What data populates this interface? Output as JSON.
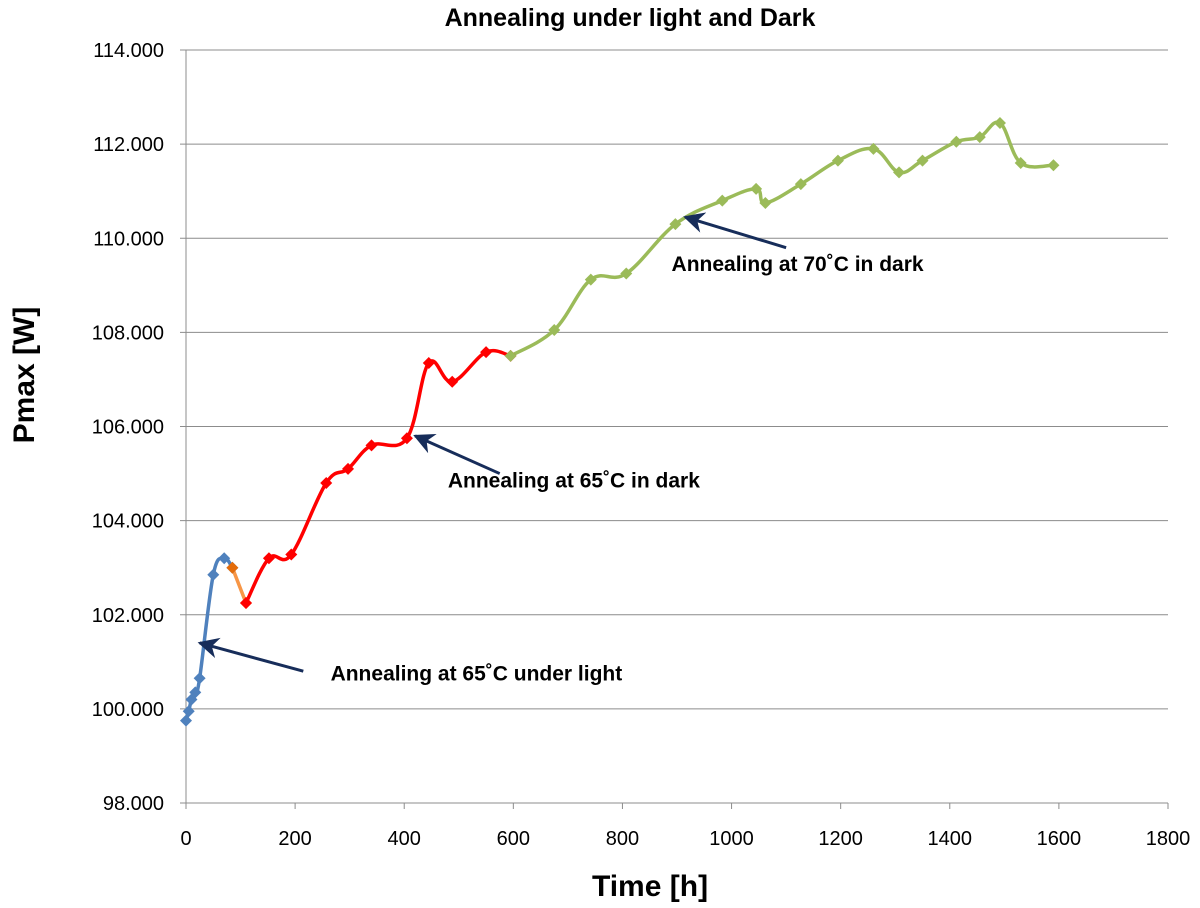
{
  "chart_data": {
    "type": "line",
    "title": "Annealing under light and Dark",
    "xlabel": "Time [h]",
    "ylabel": "Pmax  [W]",
    "xlim": [
      0,
      1800
    ],
    "ylim": [
      98,
      114
    ],
    "x_ticks": [
      0,
      200,
      400,
      600,
      800,
      1000,
      1200,
      1400,
      1600,
      1800
    ],
    "x_tick_labels": [
      "0",
      "200",
      "400",
      "600",
      "800",
      "1000",
      "1200",
      "1400",
      "1600",
      "1800"
    ],
    "y_ticks": [
      98,
      100,
      102,
      104,
      106,
      108,
      110,
      112,
      114
    ],
    "y_tick_labels": [
      "98.000",
      "100.000",
      "102.000",
      "104.000",
      "106.000",
      "108.000",
      "110.000",
      "112.000",
      "114.000"
    ],
    "grid": "horizontal",
    "legend": "none",
    "series": [
      {
        "color": "#4f81bd",
        "marker_color": "#4f81bd",
        "x": [
          0,
          5,
          10,
          17,
          25,
          50,
          70,
          85
        ],
        "y": [
          99.75,
          99.95,
          100.2,
          100.35,
          100.65,
          102.85,
          103.2,
          103.0
        ]
      },
      {
        "color": "#f79646",
        "marker_color": "#e46c0a",
        "x": [
          85,
          110
        ],
        "y": [
          103.0,
          102.25
        ]
      },
      {
        "color": "#ff0000",
        "marker_color": "#ff0000",
        "x": [
          110,
          152,
          193,
          257,
          297,
          340,
          405,
          445,
          488,
          550,
          595
        ],
        "y": [
          102.25,
          103.2,
          103.28,
          104.8,
          105.1,
          105.6,
          105.75,
          107.35,
          106.95,
          107.58,
          107.5
        ]
      },
      {
        "color": "#9bbb59",
        "marker_color": "#9bbb59",
        "x": [
          595,
          675,
          742,
          807,
          897,
          983,
          1045,
          1062,
          1127,
          1195,
          1260,
          1307,
          1350,
          1412,
          1455,
          1492,
          1530,
          1590
        ],
        "y": [
          107.5,
          108.05,
          109.12,
          109.25,
          110.3,
          110.8,
          111.05,
          110.75,
          111.15,
          111.65,
          111.9,
          111.4,
          111.65,
          112.05,
          112.15,
          112.45,
          111.6,
          111.55
        ]
      }
    ],
    "annotations": [
      {
        "text": "Annealing at 65˚C under light",
        "arrow_to": [
          25,
          101.4
        ],
        "arrow_from": [
          215,
          100.8
        ],
        "text_at": [
          265,
          100.6
        ]
      },
      {
        "text": "Annealing at 65˚C in dark",
        "arrow_to": [
          420,
          105.8
        ],
        "arrow_from": [
          575,
          105.0
        ],
        "text_at": [
          480,
          104.7
        ]
      },
      {
        "text": "Annealing at 70˚C in dark",
        "arrow_to": [
          915,
          110.45
        ],
        "arrow_from": [
          1100,
          109.8
        ],
        "text_at": [
          890,
          109.3
        ]
      }
    ]
  }
}
